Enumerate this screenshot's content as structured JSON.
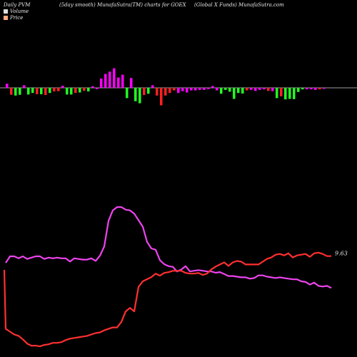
{
  "header": {
    "left": "Daily PVM",
    "middle": "(5day smooth) MunafaSutra(TM) charts for GOEX",
    "right": "(Global X Funds) MunafaSutra.com"
  },
  "legend": [
    {
      "label": "Volume",
      "color": "#dddddd"
    },
    {
      "label": "Price",
      "color": "#ffaa80"
    }
  ],
  "colors": {
    "background": "#000000",
    "axis": "#cfcfcf",
    "bar_up": "#ff00ff",
    "bar_down": "#ff2020",
    "bar_green": "#22ff22",
    "volume_line": "#ee44ee",
    "price_line": "#ff3030"
  },
  "chart_data": {
    "type": "bar+line",
    "bars": [
      {
        "v": 0.16,
        "c": "m"
      },
      {
        "v": -0.27,
        "c": "r"
      },
      {
        "v": -0.3,
        "c": "g"
      },
      {
        "v": -0.27,
        "c": "g"
      },
      {
        "v": 0.1,
        "c": "m"
      },
      {
        "v": -0.26,
        "c": "g"
      },
      {
        "v": -0.2,
        "c": "g"
      },
      {
        "v": -0.25,
        "c": "r"
      },
      {
        "v": -0.25,
        "c": "g"
      },
      {
        "v": -0.28,
        "c": "r"
      },
      {
        "v": -0.2,
        "c": "g"
      },
      {
        "v": -0.14,
        "c": "r"
      },
      {
        "v": -0.13,
        "c": "r"
      },
      {
        "v": 0.08,
        "c": "m"
      },
      {
        "v": -0.26,
        "c": "g"
      },
      {
        "v": -0.26,
        "c": "g"
      },
      {
        "v": -0.2,
        "c": "r"
      },
      {
        "v": -0.18,
        "c": "g"
      },
      {
        "v": -0.12,
        "c": "r"
      },
      {
        "v": -0.14,
        "c": "g"
      },
      {
        "v": 0.06,
        "c": "m"
      },
      {
        "v": -0.05,
        "c": "m"
      },
      {
        "v": 0.36,
        "c": "m"
      },
      {
        "v": 0.54,
        "c": "m"
      },
      {
        "v": 0.63,
        "c": "m"
      },
      {
        "v": 0.76,
        "c": "m"
      },
      {
        "v": 0.4,
        "c": "m"
      },
      {
        "v": 0.51,
        "c": "m"
      },
      {
        "v": -0.4,
        "c": "g"
      },
      {
        "v": 0.38,
        "c": "m"
      },
      {
        "v": -0.52,
        "c": "g"
      },
      {
        "v": -0.6,
        "c": "g"
      },
      {
        "v": -0.28,
        "c": "r"
      },
      {
        "v": -0.23,
        "c": "g"
      },
      {
        "v": 0.1,
        "c": "m"
      },
      {
        "v": -0.3,
        "c": "r"
      },
      {
        "v": -0.68,
        "c": "r"
      },
      {
        "v": -0.3,
        "c": "r"
      },
      {
        "v": -0.2,
        "c": "r"
      },
      {
        "v": -0.1,
        "c": "r"
      },
      {
        "v": -0.2,
        "c": "m"
      },
      {
        "v": -0.13,
        "c": "m"
      },
      {
        "v": -0.18,
        "c": "m"
      },
      {
        "v": -0.1,
        "c": "m"
      },
      {
        "v": -0.1,
        "c": "m"
      },
      {
        "v": -0.08,
        "c": "m"
      },
      {
        "v": -0.08,
        "c": "m"
      },
      {
        "v": -0.05,
        "c": "m"
      },
      {
        "v": 0.07,
        "c": "m"
      },
      {
        "v": -0.1,
        "c": "m"
      },
      {
        "v": -0.23,
        "c": "g"
      },
      {
        "v": -0.08,
        "c": "g"
      },
      {
        "v": -0.15,
        "c": "g"
      },
      {
        "v": -0.43,
        "c": "g"
      },
      {
        "v": -0.2,
        "c": "g"
      },
      {
        "v": -0.22,
        "c": "g"
      },
      {
        "v": -0.1,
        "c": "r"
      },
      {
        "v": -0.08,
        "c": "m"
      },
      {
        "v": -0.12,
        "c": "m"
      },
      {
        "v": -0.08,
        "c": "m"
      },
      {
        "v": -0.06,
        "c": "m"
      },
      {
        "v": -0.12,
        "c": "r"
      },
      {
        "v": -0.13,
        "c": "m"
      },
      {
        "v": -0.4,
        "c": "g"
      },
      {
        "v": -0.33,
        "c": "r"
      },
      {
        "v": -0.45,
        "c": "g"
      },
      {
        "v": -0.43,
        "c": "g"
      },
      {
        "v": -0.44,
        "c": "g"
      },
      {
        "v": -0.16,
        "c": "g"
      },
      {
        "v": -0.06,
        "c": "g"
      },
      {
        "v": -0.06,
        "c": "m"
      },
      {
        "v": -0.06,
        "c": "m"
      },
      {
        "v": -0.08,
        "c": "m"
      },
      {
        "v": -0.06,
        "c": "r"
      },
      {
        "v": -0.04,
        "c": "m"
      }
    ],
    "volume_line": [
      95,
      85,
      85,
      88,
      85,
      89,
      87,
      85,
      85,
      89,
      87,
      88,
      87,
      88,
      88,
      93,
      88,
      89,
      90,
      90,
      88,
      92,
      84,
      70,
      31,
      15,
      10,
      10,
      14,
      15,
      20,
      30,
      40,
      63,
      73,
      75,
      91,
      97,
      100,
      101,
      108,
      105,
      100,
      108,
      107,
      106,
      107,
      108,
      108,
      110,
      109,
      112,
      115,
      115,
      116,
      117,
      117,
      119,
      118,
      114,
      114,
      116,
      117,
      118,
      117,
      118,
      119,
      120,
      120,
      123,
      124,
      128,
      125,
      130,
      131,
      130,
      133
    ],
    "price_line": [
      220,
      224,
      228,
      230,
      235,
      241,
      244,
      244,
      245,
      243,
      242,
      240,
      240,
      239,
      236,
      234,
      233,
      232,
      231,
      230,
      228,
      226,
      225,
      222,
      220,
      218,
      218,
      210,
      195,
      190,
      195,
      160,
      152,
      149,
      146,
      141,
      144,
      140,
      139,
      137,
      137,
      137,
      140,
      141,
      141,
      140,
      143,
      141,
      135,
      131,
      128,
      125,
      130,
      125,
      123,
      124,
      128,
      128,
      128,
      128,
      124,
      120,
      118,
      114,
      113,
      115,
      112,
      118,
      115,
      114,
      113,
      117,
      112,
      111,
      113,
      116,
      116
    ],
    "end_label": "9.63"
  }
}
